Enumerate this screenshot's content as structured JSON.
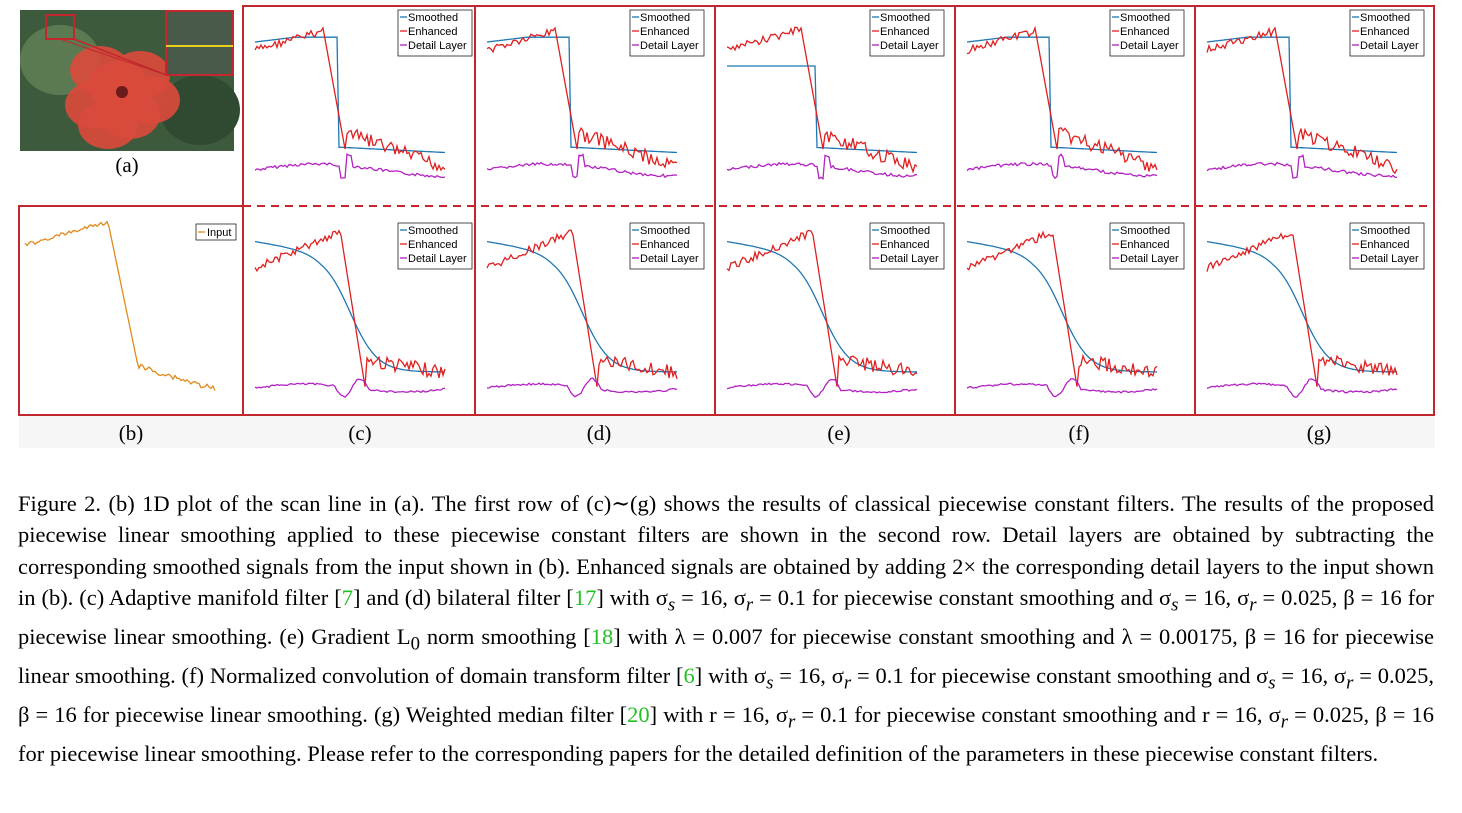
{
  "figure": {
    "panel_labels": [
      "(a)",
      "(b)",
      "(c)",
      "(d)",
      "(e)",
      "(f)",
      "(g)"
    ],
    "legend_labels": [
      "Smoothed",
      "Enhanced",
      "Detail Layer"
    ],
    "input_legend": "Input",
    "colors": {
      "frame": "#c1272d",
      "smoothed": "#1f77b4",
      "enhanced": "#e02020",
      "detail": "#b421c4",
      "input": "#e08a1c",
      "photo_bg": "#3d5a3c",
      "flower": "#d94a3c"
    }
  },
  "chart_data": [
    {
      "type": "line",
      "panel": "(b)",
      "series": [
        {
          "name": "Input",
          "shape": "step-drop with noisy plateau",
          "values": [
            0.62,
            0.66,
            0.7,
            0.75,
            0.79,
            0.8,
            0.78,
            0.55,
            0.2,
            0.14,
            0.12,
            0.1,
            0.08
          ]
        }
      ]
    },
    {
      "type": "line",
      "panel": "(c)-(g) row 1",
      "description_series": [
        "Smoothed",
        "Enhanced",
        "Detail Layer"
      ],
      "series": [
        {
          "name": "Smoothed",
          "values": [
            0.78,
            0.79,
            0.8,
            0.8,
            0.8,
            0.8,
            0.8,
            0.25,
            0.22,
            0.21,
            0.2,
            0.2,
            0.2
          ]
        },
        {
          "name": "Enhanced",
          "values": [
            0.7,
            0.82,
            0.88,
            0.94,
            0.98,
            0.96,
            0.85,
            0.3,
            0.18,
            0.12,
            0.08,
            0.06,
            0.04
          ]
        },
        {
          "name": "Detail Layer",
          "values": [
            0.05,
            0.06,
            0.07,
            0.08,
            0.09,
            0.08,
            0.04,
            0.02,
            0.03,
            0.02,
            0.01,
            -0.01,
            -0.02
          ]
        }
      ]
    },
    {
      "type": "line",
      "panel": "(c)-(g) row 2",
      "series": [
        {
          "name": "Smoothed",
          "values": [
            0.66,
            0.7,
            0.76,
            0.8,
            0.8,
            0.72,
            0.55,
            0.38,
            0.28,
            0.24,
            0.21,
            0.2,
            0.19
          ]
        },
        {
          "name": "Enhanced",
          "values": [
            0.6,
            0.66,
            0.74,
            0.84,
            0.98,
            0.7,
            0.08,
            0.25,
            0.22,
            0.2,
            0.18,
            0.16,
            0.1
          ]
        },
        {
          "name": "Detail Layer",
          "values": [
            0.05,
            0.05,
            0.06,
            0.08,
            0.12,
            0.06,
            -0.05,
            0.05,
            0.04,
            0.03,
            0.02,
            0.02,
            0.01
          ]
        }
      ]
    }
  ],
  "caption": {
    "s1": "Figure 2. (b) 1D plot of the scan line in (a). The first row of (c)∼(g) shows the results of classical piecewise constant filters. The results of the proposed piecewise linear smoothing applied to these piecewise constant filters are shown in the second row. Detail layers are obtained by subtracting the corresponding smoothed signals from the input shown in (b). Enhanced signals are obtained by adding 2× the corresponding detail layers to the input shown in (b). (c) Adaptive manifold filter [",
    "r1": "7",
    "s2": "] and (d) bilateral filter [",
    "r2": "17",
    "s3": "] with σ",
    "s3b": "s",
    "s3c": " = 16, σ",
    "s3d": "r",
    "s3e": " = 0.1 for piecewise constant smoothing and σ",
    "s3f": "s",
    "s3g": " = 16, σ",
    "s3h": "r",
    "s3i": " = 0.025, β = 16 for piecewise linear smoothing. (e) Gradient L",
    "s3j": "0",
    "s3k": " norm smoothing [",
    "r3": "18",
    "s4": "] with λ = 0.007 for piecewise constant smoothing and λ = 0.00175, β = 16 for piecewise linear smoothing. (f) Normalized convolution of domain transform filter [",
    "r4": "6",
    "s5": "] with σ",
    "s5b": "s",
    "s5c": " = 16, σ",
    "s5d": "r",
    "s5e": " = 0.1 for piecewise constant smoothing and σ",
    "s5f": "s",
    "s5g": " = 16, σ",
    "s5h": "r",
    "s5i": " = 0.025, β = 16 for piecewise linear smoothing. (g) Weighted median filter [",
    "r5": "20",
    "s6": "] with r = 16, σ",
    "s6b": "r",
    "s6c": " = 0.1 for piecewise constant smoothing and r = 16, σ",
    "s6d": "r",
    "s6e": " = 0.025, β = 16 for piecewise linear smoothing. Please refer to the corresponding papers for the detailed definition of the parameters in these piecewise constant filters."
  }
}
